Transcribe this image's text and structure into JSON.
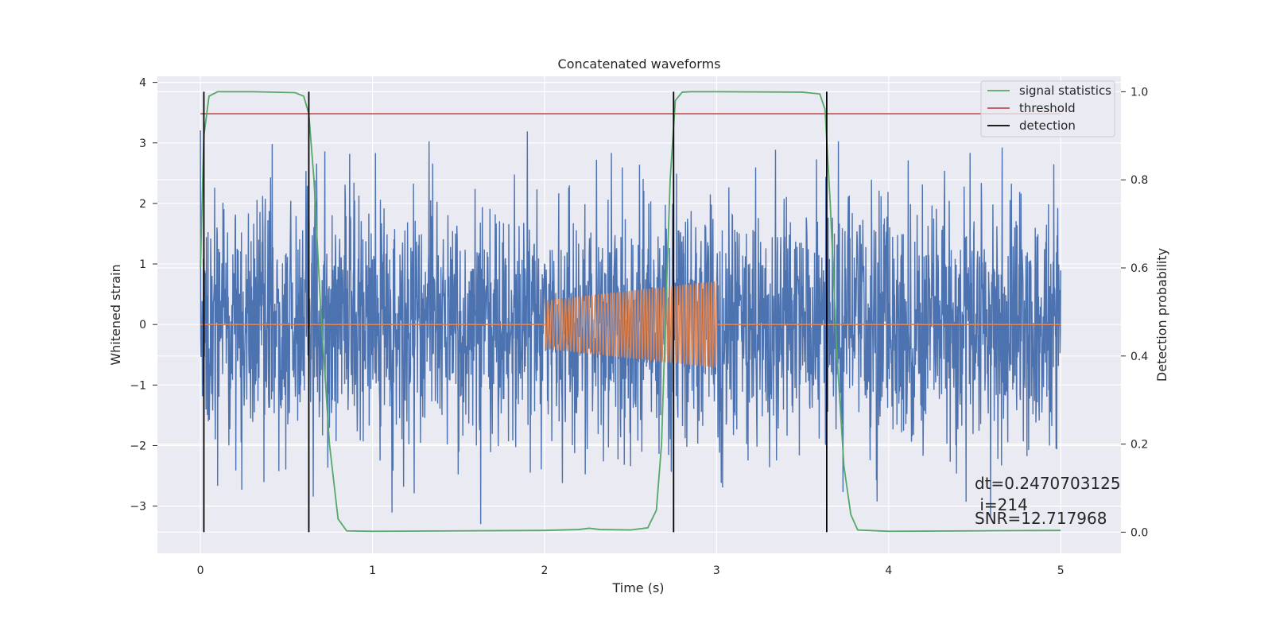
{
  "chart_data": {
    "type": "line",
    "title": "Concatenated waveforms",
    "xlabel": "Time (s)",
    "ylabel_left": "Whitened strain",
    "ylabel_right": "Detection probability",
    "xlim": [
      -0.25,
      5.35
    ],
    "ylim_left": [
      -3.78,
      4.1
    ],
    "ylim_right": [
      -0.048,
      1.035
    ],
    "x_ticks": [
      0,
      1,
      2,
      3,
      4,
      5
    ],
    "y_left_ticks": [
      -3,
      -2,
      -1,
      0,
      1,
      2,
      3,
      4
    ],
    "y_right_ticks": [
      0.0,
      0.2,
      0.4,
      0.6,
      0.8,
      1.0
    ],
    "x_tick_labels": [
      "0",
      "1",
      "2",
      "3",
      "4",
      "5"
    ],
    "y_left_tick_labels": [
      "−3",
      "−2",
      "−1",
      "0",
      "1",
      "2",
      "3",
      "4"
    ],
    "y_right_tick_labels": [
      "0.0",
      "0.2",
      "0.4",
      "0.6",
      "0.8",
      "1.0"
    ],
    "grid": true,
    "legend": {
      "placement": "top-right",
      "entries": [
        {
          "label": "signal statistics",
          "color": "#55a868"
        },
        {
          "label": "threshold",
          "color": "#c44e52"
        },
        {
          "label": "detection",
          "color": "#000000"
        }
      ]
    },
    "series": [
      {
        "role": "noise",
        "color": "#4c72b0",
        "axis": "left",
        "x_range": [
          0,
          5
        ],
        "typical_amplitude": 1.0,
        "peak_max": 3.73,
        "peak_min": -3.3
      },
      {
        "role": "injected-chirp",
        "color": "#dd8452",
        "axis": "left",
        "segments": [
          {
            "x": [
              0,
              2
            ],
            "y": 0
          },
          {
            "x": [
              2,
              3
            ],
            "envelope_start": 0.4,
            "envelope_end": 0.72
          },
          {
            "x": [
              3,
              5
            ],
            "y": 0
          }
        ]
      },
      {
        "name": "signal statistics",
        "color": "#55a868",
        "axis": "right",
        "x": [
          0.0,
          0.02,
          0.05,
          0.1,
          0.3,
          0.55,
          0.6,
          0.63,
          0.66,
          0.7,
          0.75,
          0.8,
          0.85,
          1.0,
          1.5,
          2.0,
          2.2,
          2.26,
          2.32,
          2.5,
          2.6,
          2.65,
          2.68,
          2.7,
          2.73,
          2.76,
          2.8,
          2.85,
          3.0,
          3.5,
          3.6,
          3.63,
          3.66,
          3.7,
          3.74,
          3.78,
          3.82,
          4.0,
          4.5,
          5.0
        ],
        "y": [
          0.6,
          0.9,
          0.99,
          1.0,
          1.0,
          0.998,
          0.99,
          0.95,
          0.8,
          0.5,
          0.2,
          0.03,
          0.003,
          0.002,
          0.003,
          0.004,
          0.006,
          0.009,
          0.006,
          0.005,
          0.01,
          0.05,
          0.2,
          0.45,
          0.8,
          0.98,
          0.999,
          1.0,
          1.0,
          0.999,
          0.995,
          0.96,
          0.75,
          0.4,
          0.15,
          0.04,
          0.005,
          0.002,
          0.003,
          0.004
        ]
      },
      {
        "name": "threshold",
        "color": "#c44e52",
        "axis": "right",
        "x": [
          0,
          5
        ],
        "y": [
          0.95,
          0.95
        ]
      },
      {
        "name": "detection",
        "color": "#000000",
        "axis": "right",
        "type": "vlines",
        "x": [
          0.02,
          0.63,
          2.75,
          3.64
        ],
        "ymin": 0.0,
        "ymax": 1.0
      }
    ],
    "annotations": [
      "dt=0.2470703125",
      " i=214",
      "SNR=12.717968"
    ]
  }
}
